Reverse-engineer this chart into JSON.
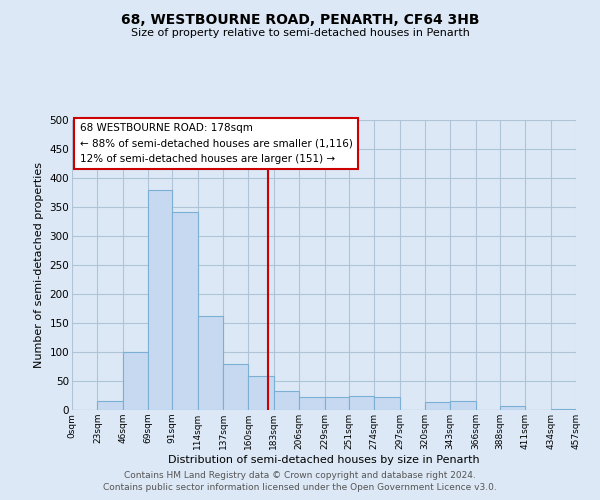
{
  "title": "68, WESTBOURNE ROAD, PENARTH, CF64 3HB",
  "subtitle": "Size of property relative to semi-detached houses in Penarth",
  "xlabel": "Distribution of semi-detached houses by size in Penarth",
  "ylabel": "Number of semi-detached properties",
  "bar_edges": [
    0,
    23,
    46,
    69,
    91,
    114,
    137,
    160,
    183,
    206,
    229,
    251,
    274,
    297,
    320,
    343,
    366,
    388,
    411,
    434,
    457
  ],
  "bar_heights": [
    0,
    15,
    100,
    380,
    342,
    162,
    80,
    58,
    33,
    23,
    22,
    25,
    22,
    0,
    13,
    15,
    0,
    7,
    0,
    2
  ],
  "bar_color": "#c6d9f1",
  "bar_edge_color": "#7bafd4",
  "property_size": 178,
  "vline_color": "#cc0000",
  "annotation_box_edge_color": "#cc0000",
  "annotation_box_face_color": "#ffffff",
  "annotation_line1": "68 WESTBOURNE ROAD: 178sqm",
  "annotation_line2": "← 88% of semi-detached houses are smaller (1,116)",
  "annotation_line3": "12% of semi-detached houses are larger (151) →",
  "ylim": [
    0,
    500
  ],
  "xlim": [
    0,
    457
  ],
  "tick_labels": [
    "0sqm",
    "23sqm",
    "46sqm",
    "69sqm",
    "91sqm",
    "114sqm",
    "137sqm",
    "160sqm",
    "183sqm",
    "206sqm",
    "229sqm",
    "251sqm",
    "274sqm",
    "297sqm",
    "320sqm",
    "343sqm",
    "366sqm",
    "388sqm",
    "411sqm",
    "434sqm",
    "457sqm"
  ],
  "ytick_labels": [
    "0",
    "50",
    "100",
    "150",
    "200",
    "250",
    "300",
    "350",
    "400",
    "450",
    "500"
  ],
  "footer_line1": "Contains HM Land Registry data © Crown copyright and database right 2024.",
  "footer_line2": "Contains public sector information licensed under the Open Government Licence v3.0.",
  "background_color": "#dce8f5",
  "plot_bg_color": "#dce8f5",
  "grid_color": "#b0c4d8"
}
